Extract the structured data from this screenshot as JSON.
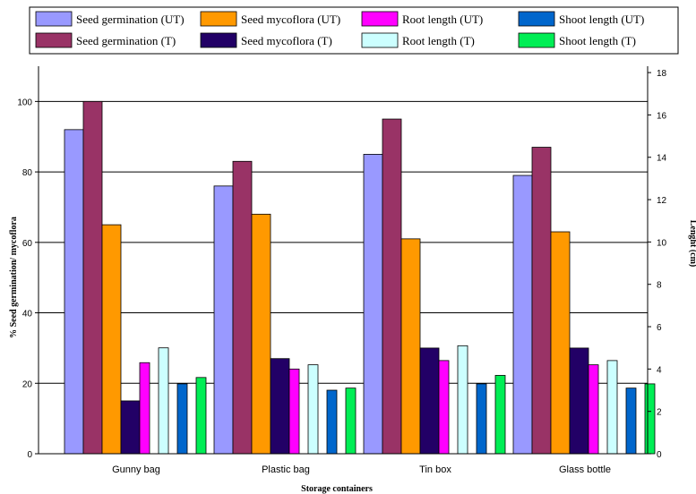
{
  "chart_data": {
    "type": "bar",
    "xlabel": "Storage containers",
    "ylabel": "% Seed germination/ mycoflora",
    "y2label": "Lenght (cm)",
    "categories": [
      "Gunny bag",
      "Plastic bag",
      "Tin box",
      "Glass bottle"
    ],
    "ylim": [
      0,
      110
    ],
    "y_ticks": [
      0,
      20,
      40,
      60,
      80,
      100
    ],
    "y2lim": [
      0,
      18.3
    ],
    "y2_ticks": [
      0,
      2,
      4,
      6,
      8,
      10,
      12,
      14,
      16,
      18
    ],
    "grid": "horizontal at left-axis ticks",
    "legend_position": "top",
    "series": [
      {
        "name": "Seed germination (UT)",
        "axis": "left",
        "color": "#9999ff",
        "values": [
          92,
          76,
          85,
          79
        ]
      },
      {
        "name": "Seed germination (T)",
        "axis": "left",
        "color": "#993366",
        "values": [
          100,
          83,
          95,
          87
        ]
      },
      {
        "name": "Seed mycoflora (UT)",
        "axis": "left",
        "color": "#ff9900",
        "values": [
          65,
          68,
          61,
          63
        ]
      },
      {
        "name": "Seed mycoflora (T)",
        "axis": "left",
        "color": "#220066",
        "values": [
          15,
          27,
          30,
          30
        ]
      },
      {
        "name": "Root length (UT)",
        "axis": "right",
        "color": "#ff00ff",
        "values": [
          4.3,
          4.0,
          4.4,
          4.2
        ]
      },
      {
        "name": "Root length (T)",
        "axis": "right",
        "color": "#ccffff",
        "values": [
          5.0,
          4.2,
          5.1,
          4.4
        ]
      },
      {
        "name": "Shoot length (UT)",
        "axis": "right",
        "color": "#0066cc",
        "values": [
          3.3,
          3.0,
          3.3,
          3.1
        ]
      },
      {
        "name": "Shoot length (T)",
        "axis": "right",
        "color": "#00ee55",
        "values": [
          3.6,
          3.1,
          3.7,
          3.3
        ]
      }
    ],
    "legend": [
      {
        "label": "Seed germination (UT)",
        "color": "#9999ff"
      },
      {
        "label": "Seed mycoflora (UT)",
        "color": "#ff9900"
      },
      {
        "label": "Root length (UT)",
        "color": "#ff00ff"
      },
      {
        "label": "Shoot length (UT)",
        "color": "#0066cc"
      },
      {
        "label": "Seed germination (T)",
        "color": "#993366"
      },
      {
        "label": "Seed mycoflora (T)",
        "color": "#220066"
      },
      {
        "label": "Root length (T)",
        "color": "#ccffff"
      },
      {
        "label": "Shoot length (T)",
        "color": "#00ee55"
      }
    ]
  }
}
